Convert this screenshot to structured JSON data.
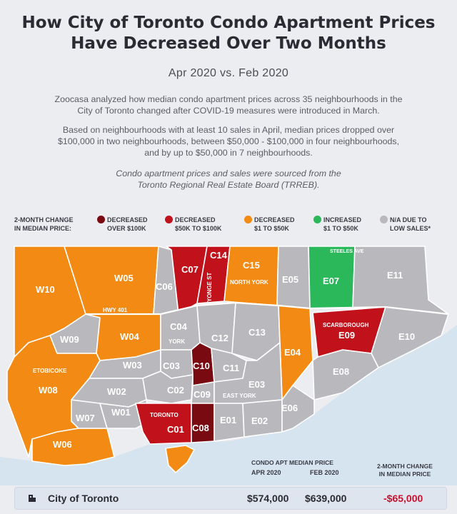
{
  "title_line1": "How City of Toronto Condo Apartment Prices",
  "title_line2": "Have Decreased Over Two Months",
  "subtitle": "Apr 2020 vs. Feb 2020",
  "paragraph1_line1": "Zoocasa analyzed how median condo apartment prices across 35 neighbourhoods in the",
  "paragraph1_line2": "City of Toronto changed after COVID-19 measures were introduced in March.",
  "paragraph2_line1": "Based on neighbourhoods with at least 10 sales in April, median prices dropped over",
  "paragraph2_line2": "$100,000 in two neighbourhoods, between $50,000 - $100,000 in four neighbourhoods,",
  "paragraph2_line3": "and by up to $50,000 in 7 neighbourhoods.",
  "source_line1": "Condo apartment prices and sales were sourced from the",
  "source_line2": "Toronto Regional Real Estate Board (TRREB).",
  "legend": {
    "title_line1": "2-MONTH CHANGE",
    "title_line2": "IN MEDIAN PRICE:",
    "items": [
      {
        "line1": "DECREASED",
        "line2": "OVER $100K",
        "color": "#7a0a12"
      },
      {
        "line1": "DECREASED",
        "line2": "$50K TO $100K",
        "color": "#c1121c"
      },
      {
        "line1": "DECREASED",
        "line2": "$1 TO $50K",
        "color": "#f28a14"
      },
      {
        "line1": "INCREASED",
        "line2": "$1 TO $50K",
        "color": "#2bb85a"
      },
      {
        "line1": "N/A DUE TO",
        "line2": "LOW SALES*",
        "color": "#b9b9bd"
      }
    ]
  },
  "map": {
    "region_labels": {
      "W10": "W10",
      "W05": "W05",
      "C06": "C06",
      "C07": "C07",
      "C14": "C14",
      "C15": "C15",
      "E05": "E05",
      "E07": "E07",
      "E11": "E11",
      "W09": "W09",
      "W04": "W04",
      "C04": "C04",
      "C12": "C12",
      "C13": "C13",
      "E04": "E04",
      "E09": "E09",
      "E10": "E10",
      "W08": "W08",
      "W03": "W03",
      "C03": "C03",
      "C10": "C10",
      "C11": "C11",
      "E08": "E08",
      "W02": "W02",
      "C02": "C02",
      "E03": "E03",
      "C09": "C09",
      "W07": "W07",
      "W01": "W01",
      "C01": "C01",
      "C08": "C08",
      "E01": "E01",
      "E02": "E02",
      "E06": "E06",
      "W06": "W06"
    },
    "place_labels": {
      "hwy401": "HWY 401",
      "north_york": "NORTH YORK",
      "yonge_st": "YONGE ST",
      "steeles_ave": "STEELES AVE",
      "scarborough": "SCARBOROUGH",
      "york": "YORK",
      "etobicoke": "ETOBICOKE",
      "east_york": "EAST YORK",
      "toronto": "TORONTO"
    }
  },
  "summary": {
    "header_main": "CONDO APT MEDIAN PRICE",
    "header_apr": "APR 2020",
    "header_feb": "FEB 2020",
    "header_change_line1": "2-MONTH CHANGE",
    "header_change_line2": "IN MEDIAN PRICE",
    "name": "City of Toronto",
    "apr_price": "$574,000",
    "feb_price": "$639,000",
    "change": "-$65,000"
  }
}
